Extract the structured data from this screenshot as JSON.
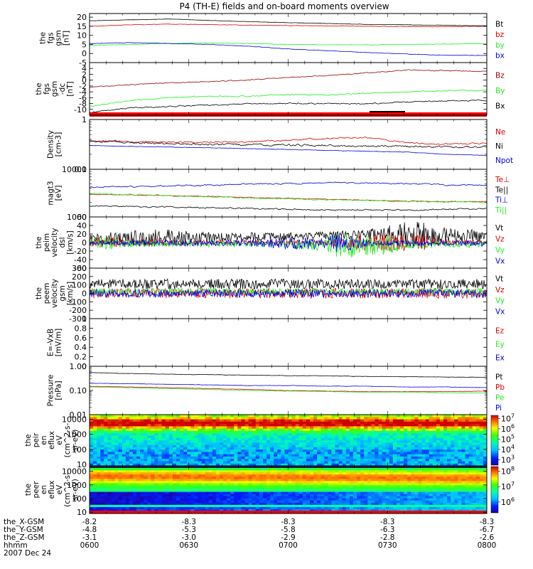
{
  "title": "P4 (TH-E) fields and on-board moments overview",
  "colors": {
    "black": "#000000",
    "red": "#dd0000",
    "green": "#22ee22",
    "blue": "#0000dd",
    "darkred": "#990000"
  },
  "chart_data": [
    {
      "type": "line",
      "id": "fgs_gsm",
      "ylabel_lines": [
        "the",
        "fgs",
        "gsm",
        "[nT]"
      ],
      "ylim": [
        -5,
        22
      ],
      "yticks": [
        20,
        15,
        10,
        5,
        0,
        -5
      ],
      "series": [
        {
          "name": "Bt",
          "color": "black",
          "trend": [
            18,
            18.5,
            19,
            18.2,
            17.5,
            17,
            16.5,
            16,
            15.8,
            15.5,
            15.2
          ]
        },
        {
          "name": "bz",
          "color": "red",
          "trend": [
            15,
            15.8,
            16.2,
            15.9,
            15.6,
            15.4,
            15.2,
            15,
            14.8,
            14.8,
            15
          ]
        },
        {
          "name": "by",
          "color": "green",
          "trend": [
            4.5,
            5,
            5.5,
            5.8,
            5.5,
            5,
            4.8,
            4.8,
            5,
            5.2,
            5.5
          ]
        },
        {
          "name": "bx",
          "color": "blue",
          "trend": [
            5.5,
            6,
            5.5,
            5,
            4,
            2.5,
            1.5,
            0.5,
            -0.3,
            -1,
            -1
          ]
        }
      ]
    },
    {
      "type": "line",
      "id": "fgs_gsm_dc",
      "ylabel_lines": [
        "the",
        "fgs",
        "gsm",
        "-dc",
        "[nT]"
      ],
      "ylim": [
        -12,
        6
      ],
      "yticks": [
        4,
        2,
        0,
        -2,
        -4,
        -6,
        -8,
        -10
      ],
      "series": [
        {
          "name": "Bz",
          "color": "darkred",
          "trend": [
            -2.5,
            -1.5,
            -1,
            -0.5,
            0,
            1,
            1.5,
            2.5,
            3.5,
            3.2,
            3
          ]
        },
        {
          "name": "By",
          "color": "green",
          "trend": [
            -9,
            -7,
            -6,
            -5.5,
            -5.5,
            -5,
            -5,
            -4.5,
            -4,
            -3.5,
            -3.5
          ]
        },
        {
          "name": "Bx",
          "color": "black",
          "trend": [
            -11,
            -9.5,
            -9,
            -8.5,
            -8,
            -8,
            -8,
            -8,
            -7.5,
            -7,
            -7
          ]
        }
      ]
    },
    {
      "type": "line",
      "id": "density",
      "ylabel_lines": [
        "Density",
        "[cm-3]"
      ],
      "yscale": "log",
      "ylim": [
        0.1,
        1.0
      ],
      "yticks": [
        1.0,
        0.1
      ],
      "series": [
        {
          "name": "Ne",
          "color": "red",
          "trend": [
            0.38,
            0.36,
            0.35,
            0.35,
            0.36,
            0.38,
            0.42,
            0.43,
            0.34,
            0.32,
            0.33
          ]
        },
        {
          "name": "Ni",
          "color": "black",
          "trend": [
            0.37,
            0.35,
            0.33,
            0.32,
            0.31,
            0.31,
            0.3,
            0.29,
            0.29,
            0.28,
            0.28
          ]
        },
        {
          "name": "Npot",
          "color": "blue",
          "trend": [
            0.3,
            0.29,
            0.28,
            0.27,
            0.26,
            0.25,
            0.24,
            0.23,
            0.22,
            0.2,
            0.19
          ]
        }
      ]
    },
    {
      "type": "line",
      "id": "temperature",
      "ylabel_lines": [
        "magt3",
        "[eV]"
      ],
      "yscale": "log",
      "ylim": [
        1000,
        10000
      ],
      "yticks": [
        10000,
        1000
      ],
      "series": [
        {
          "name": "Te⊥",
          "color": "red",
          "trend": [
            3000,
            2900,
            2800,
            2700,
            2550,
            2450,
            2350,
            2250,
            2150,
            2100,
            2100
          ]
        },
        {
          "name": "Te||",
          "color": "black",
          "trend": [
            1700,
            1650,
            1600,
            1550,
            1500,
            1450,
            1400,
            1400,
            1400,
            1450,
            1500
          ]
        },
        {
          "name": "Ti⊥",
          "color": "blue",
          "trend": [
            4200,
            4300,
            4500,
            4600,
            4900,
            5000,
            5300,
            5100,
            5000,
            4700,
            4700
          ]
        },
        {
          "name": "Ti||",
          "color": "green",
          "trend": [
            3100,
            2950,
            2800,
            2650,
            2500,
            2400,
            2300,
            2200,
            2150,
            2100,
            2050
          ]
        }
      ]
    },
    {
      "type": "line",
      "id": "peim_velocity_dsl",
      "ylabel_lines": [
        "the",
        "peim",
        "velocity",
        "dsl",
        "[km/s]"
      ],
      "ylim": [
        -60,
        60
      ],
      "yticks": [
        60,
        40,
        20,
        0,
        -20,
        -40,
        -60
      ],
      "series": [
        {
          "name": "Vt",
          "color": "black",
          "trend": [
            10,
            10,
            11,
            12,
            14,
            15,
            16,
            20,
            18,
            15,
            14
          ]
        },
        {
          "name": "Vz",
          "color": "red",
          "trend": [
            0,
            0,
            0,
            0,
            0,
            0,
            0,
            0,
            0,
            0,
            0
          ]
        },
        {
          "name": "Vy",
          "color": "green",
          "trend": [
            -2,
            -2,
            -2,
            -3,
            -3,
            -4,
            -5,
            -6,
            -6,
            -5,
            -4
          ]
        },
        {
          "name": "Vx",
          "color": "blue",
          "trend": [
            -1,
            -1,
            -1,
            -1,
            -1,
            -2,
            -2,
            -2,
            -2,
            -2,
            -2
          ]
        }
      ]
    },
    {
      "type": "line",
      "id": "peem_velocity_gsm",
      "ylabel_lines": [
        "the",
        "peem",
        "velocity",
        "gsm",
        "[km/s]"
      ],
      "ylim": [
        -300,
        300
      ],
      "yticks": [
        300,
        200,
        100,
        0,
        -100,
        -200,
        -300
      ],
      "series": [
        {
          "name": "Vt",
          "color": "black",
          "trend": [
            110,
            110,
            110,
            110,
            110,
            110,
            110,
            110,
            110,
            110,
            110
          ]
        },
        {
          "name": "Vz",
          "color": "red",
          "trend": [
            0,
            0,
            0,
            0,
            0,
            0,
            0,
            0,
            0,
            0,
            0
          ]
        },
        {
          "name": "Vy",
          "color": "green",
          "trend": [
            20,
            20,
            20,
            20,
            20,
            20,
            20,
            20,
            20,
            20,
            20
          ]
        },
        {
          "name": "Vx",
          "color": "blue",
          "trend": [
            0,
            0,
            0,
            0,
            0,
            0,
            0,
            0,
            0,
            0,
            0
          ]
        }
      ]
    },
    {
      "type": "line",
      "id": "efield",
      "ylabel_lines": [
        "E=-VxB",
        "[mV/m]"
      ],
      "ylim": [
        0,
        1
      ],
      "yticks": [
        1.0,
        0.8,
        0.6,
        0.4,
        0.2,
        0.0
      ],
      "series": [
        {
          "name": "Ez",
          "color": "red",
          "trend": []
        },
        {
          "name": "Ey",
          "color": "green",
          "trend": []
        },
        {
          "name": "Ex",
          "color": "blue",
          "trend": []
        }
      ]
    },
    {
      "type": "line",
      "id": "pressure",
      "ylabel_lines": [
        "Pressure",
        "[nPa]"
      ],
      "yscale": "log",
      "ylim": [
        0.01,
        1.0
      ],
      "yticks": [
        1.0,
        0.1,
        0.01
      ],
      "ytick_labels": [
        "1.00",
        "0.10",
        "0.01"
      ],
      "series": [
        {
          "name": "Pt",
          "color": "black",
          "trend": [
            0.55,
            0.5,
            0.47,
            0.45,
            0.43,
            0.41,
            0.4,
            0.38,
            0.37,
            0.36,
            0.35
          ]
        },
        {
          "name": "Pb",
          "color": "red",
          "trend": [
            0.15,
            0.14,
            0.13,
            0.12,
            0.11,
            0.1,
            0.095,
            0.09,
            0.09,
            0.09,
            0.095
          ]
        },
        {
          "name": "Pe",
          "color": "green",
          "trend": [
            0.14,
            0.13,
            0.12,
            0.11,
            0.1,
            0.095,
            0.09,
            0.085,
            0.085,
            0.08,
            0.08
          ]
        },
        {
          "name": "Pi",
          "color": "blue",
          "trend": [
            0.2,
            0.19,
            0.18,
            0.17,
            0.16,
            0.16,
            0.15,
            0.15,
            0.14,
            0.14,
            0.13
          ]
        }
      ]
    },
    {
      "type": "heatmap",
      "id": "peir_en_eflux",
      "ylabel_lines": [
        "the",
        "peir",
        "en",
        "eflux",
        "eV",
        "(cm^2-s-",
        "sr-eV)"
      ],
      "yscale": "log",
      "ylim": [
        8,
        20000
      ],
      "yticks": [
        10000,
        1000,
        100,
        10
      ],
      "colorbar": {
        "scale": "log",
        "range": [
          300,
          20000000
        ],
        "ticks": [
          {
            "base": "10",
            "exp": "7",
            "value": 10000000
          },
          {
            "base": "10",
            "exp": "6",
            "value": 1000000
          },
          {
            "base": "10",
            "exp": "5",
            "value": 100000
          },
          {
            "base": "10",
            "exp": "4",
            "value": 10000
          },
          {
            "base": "10",
            "exp": "3",
            "value": 1000
          }
        ]
      }
    },
    {
      "type": "heatmap",
      "id": "peer_en_eflux",
      "ylabel_lines": [
        "the",
        "peer",
        "en",
        "eflux",
        "eV",
        "(cm^2-s-",
        "sr-eV)"
      ],
      "yscale": "log",
      "ylim": [
        8,
        25000
      ],
      "yticks": [
        10000,
        1000,
        100,
        10
      ],
      "colorbar": {
        "scale": "log",
        "range": [
          200000,
          200000000
        ],
        "ticks": [
          {
            "base": "10",
            "exp": "8",
            "value": 100000000
          },
          {
            "base": "10",
            "exp": "7",
            "value": 10000000
          },
          {
            "base": "10",
            "exp": "6",
            "value": 1000000
          }
        ]
      }
    }
  ],
  "x_axis": {
    "range": [
      "06:00",
      "08:00"
    ],
    "ticks": [
      "0600",
      "0630",
      "0700",
      "0730",
      "0800"
    ],
    "rows": [
      {
        "label": "the_X-GSM",
        "values": [
          "-8.2",
          "-8.3",
          "-8.3",
          "-8.3",
          "-8.3"
        ]
      },
      {
        "label": "the_Y-GSM",
        "values": [
          "-4.8",
          "-5.3",
          "-5.8",
          "-6.3",
          "-6.7"
        ]
      },
      {
        "label": "the_Z-GSM",
        "values": [
          "-3.1",
          "-3.0",
          "-2.9",
          "-2.8",
          "-2.6"
        ]
      },
      {
        "label": "hhmm",
        "values": [
          "0600",
          "0630",
          "0700",
          "0730",
          "0800"
        ]
      }
    ],
    "date": "2007 Dec 24"
  }
}
